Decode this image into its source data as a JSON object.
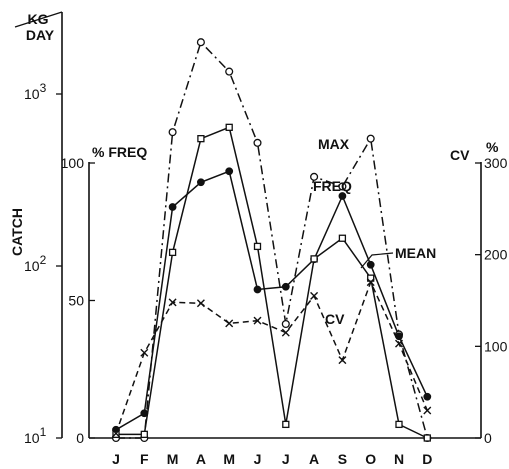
{
  "chart_data": {
    "type": "line",
    "unit_label": {
      "top": "KG",
      "bottom": "DAY"
    },
    "left_axis": {
      "label": "CATCH",
      "scale": "log",
      "range": [
        10,
        2000
      ],
      "ticks": [
        {
          "value": 10,
          "base": "10",
          "exp": "1"
        },
        {
          "value": 100,
          "base": "10",
          "exp": "2"
        },
        {
          "value": 1000,
          "base": "10",
          "exp": "3"
        }
      ]
    },
    "freq_axis": {
      "label": "% FREQ",
      "range": [
        0,
        100
      ],
      "ticks": [
        {
          "value": 0,
          "label": "0"
        },
        {
          "value": 50,
          "label": "50"
        },
        {
          "value": 100,
          "label": "100"
        }
      ]
    },
    "right_axis": {
      "label": "CV",
      "unit": "%",
      "range": [
        0,
        300
      ],
      "ticks": [
        {
          "value": 0,
          "label": "0"
        },
        {
          "value": 100,
          "label": "100"
        },
        {
          "value": 200,
          "label": "200"
        },
        {
          "value": 300,
          "label": "300"
        }
      ]
    },
    "categories": [
      "J",
      "F",
      "M",
      "A",
      "M",
      "J",
      "J",
      "A",
      "S",
      "O",
      "N",
      "D"
    ],
    "series": [
      {
        "name": "MAX",
        "axis": "catch",
        "marker": "open-circle",
        "style": "dash-dot",
        "values": [
          10,
          10,
          600,
          2000,
          1350,
          520,
          46,
          330,
          290,
          550,
          40,
          10
        ]
      },
      {
        "name": "FREQ",
        "axis": "freq",
        "marker": "filled-circle",
        "style": "solid",
        "values": [
          3,
          9,
          84,
          93,
          97,
          54,
          55,
          65,
          88,
          63,
          37,
          15
        ]
      },
      {
        "name": "MEAN",
        "axis": "catch",
        "marker": "open-square",
        "style": "solid",
        "values": [
          10.5,
          10.5,
          120,
          550,
          640,
          130,
          12,
          110,
          145,
          85,
          12,
          10
        ]
      },
      {
        "name": "CV",
        "axis": "cv",
        "marker": "cross",
        "style": "dashed",
        "values": [
          5,
          93,
          148,
          147,
          125,
          128,
          115,
          155,
          85,
          170,
          103,
          30
        ]
      }
    ]
  }
}
